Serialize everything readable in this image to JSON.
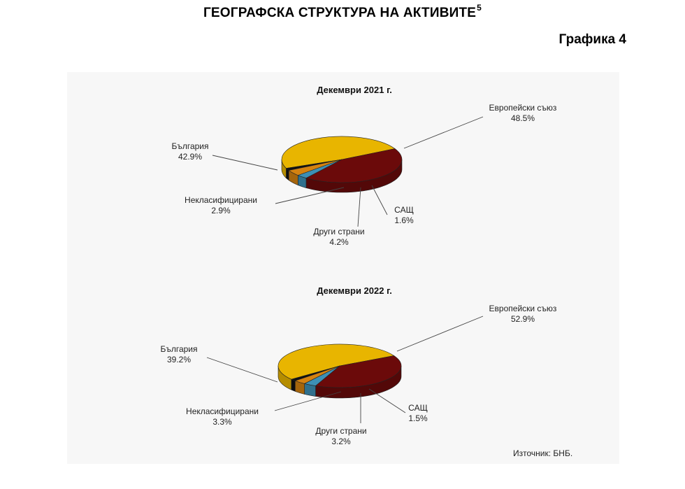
{
  "page": {
    "title": "ГЕОГРАФСКА СТРУКТУРА НА АКТИВИТЕ",
    "title_footnote": "5",
    "chart_number": "Графика 4",
    "source": "Източник: БНБ."
  },
  "colors": {
    "Европейски съюз": "#e8b500",
    "България": "#6b0a0a",
    "Некласифицирани": "#3d8fb5",
    "Други страни": "#d48210",
    "САЩ": "#111111"
  },
  "chart_data": [
    {
      "type": "pie",
      "title": "Декември 2021 г.",
      "series": [
        {
          "name": "Европейски съюз",
          "value": 48.5,
          "label": "48.5%"
        },
        {
          "name": "САЩ",
          "value": 1.6,
          "label": "1.6%"
        },
        {
          "name": "Други страни",
          "value": 4.2,
          "label": "4.2%"
        },
        {
          "name": "Некласифицирани",
          "value": 2.9,
          "label": "2.9%"
        },
        {
          "name": "България",
          "value": 42.9,
          "label": "42.9%"
        }
      ]
    },
    {
      "type": "pie",
      "title": "Декември 2022 г.",
      "series": [
        {
          "name": "Европейски съюз",
          "value": 52.9,
          "label": "52.9%"
        },
        {
          "name": "САЩ",
          "value": 1.5,
          "label": "1.5%"
        },
        {
          "name": "Други страни",
          "value": 3.2,
          "label": "3.2%"
        },
        {
          "name": "Некласифицирани",
          "value": 3.3,
          "label": "3.3%"
        },
        {
          "name": "България",
          "value": 39.2,
          "label": "39.2%"
        }
      ]
    }
  ]
}
